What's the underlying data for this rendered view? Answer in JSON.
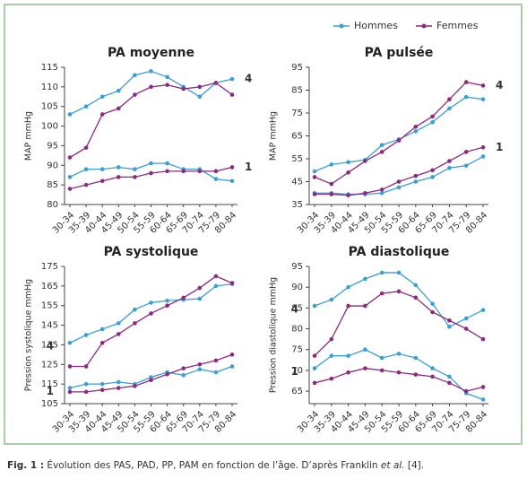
{
  "legend": [
    {
      "name": "Hommes",
      "color": "#3a9fd4"
    },
    {
      "name": "Femmes",
      "color": "#8c2a7e"
    }
  ],
  "caption": [
    "Fig. 1 :",
    " Évolution des PAS, PAD, PP, PAM en fonction de l’âge. D’après Franklin ",
    "et al.",
    " [4]."
  ],
  "chart_data": [
    {
      "type": "line",
      "title": "PA moyenne",
      "y_label": "MAP mmHg",
      "group_label_side": "right",
      "categories": [
        "30-34",
        "35-39",
        "40-44",
        "45-49",
        "50-54",
        "55-59",
        "60-64",
        "65-69",
        "70-74",
        "75-79",
        "80-84"
      ],
      "ylim": [
        80,
        115
      ],
      "yticks": [
        80,
        85,
        90,
        95,
        100,
        105,
        110,
        115
      ],
      "groups": [
        {
          "label": "4",
          "values": [
            [
              103,
              105,
              107.5,
              109,
              113,
              114,
              112.5,
              110,
              107.5,
              111,
              112
            ],
            [
              92,
              94.5,
              103,
              104.5,
              108,
              110,
              110.5,
              109.5,
              110,
              111,
              108
            ]
          ]
        },
        {
          "label": "1",
          "values": [
            [
              87,
              89,
              89,
              89.5,
              89,
              90.5,
              90.5,
              89,
              89,
              86.5,
              86
            ],
            [
              84,
              85,
              86,
              87,
              87,
              88,
              88.5,
              88.5,
              88.5,
              88.5,
              89.5
            ]
          ]
        }
      ]
    },
    {
      "type": "line",
      "title": "PA pulsée",
      "y_label": "MAP mmHg",
      "group_label_side": "right",
      "categories": [
        "30-34",
        "35-39",
        "40-44",
        "45-49",
        "50-54",
        "55-59",
        "60-64",
        "65-69",
        "70-74",
        "75-79",
        "80-84"
      ],
      "ylim": [
        35,
        95
      ],
      "yticks": [
        35,
        45,
        55,
        65,
        75,
        85,
        95
      ],
      "groups": [
        {
          "label": "4",
          "values": [
            [
              49.5,
              52.5,
              53.5,
              54.5,
              61,
              63.5,
              67,
              71,
              77,
              82,
              81
            ],
            [
              47,
              44,
              49,
              54,
              58,
              63,
              69,
              73.5,
              81,
              88.5,
              87
            ]
          ]
        },
        {
          "label": "1",
          "values": [
            [
              40,
              40,
              39.5,
              39.5,
              40,
              42.5,
              45,
              47,
              51,
              52,
              56
            ],
            [
              39.5,
              39.5,
              39,
              40,
              41.5,
              45,
              47.5,
              50,
              54,
              58,
              60
            ]
          ]
        }
      ]
    },
    {
      "type": "line",
      "title": "PA systolique",
      "y_label": "Pression systolique mmHg",
      "group_label_side": "left",
      "categories": [
        "30-34",
        "35-39",
        "40-44",
        "45-49",
        "50-54",
        "55-59",
        "60-64",
        "65-69",
        "70-74",
        "75-79",
        "80-84"
      ],
      "ylim": [
        105,
        175
      ],
      "yticks": [
        105,
        115,
        125,
        135,
        145,
        155,
        165,
        175
      ],
      "groups": [
        {
          "label": "4",
          "values": [
            [
              136,
              140,
              143,
              146,
              153,
              156.5,
              157.5,
              158,
              158.5,
              165,
              166
            ],
            [
              124,
              124,
              136,
              140.5,
              146,
              151,
              155,
              159,
              164,
              170,
              166.5
            ]
          ]
        },
        {
          "label": "1",
          "values": [
            [
              113,
              115,
              115,
              116,
              115,
              118.5,
              121,
              119.5,
              122.5,
              121,
              124
            ],
            [
              111,
              111,
              112,
              113,
              114,
              117,
              120,
              123,
              125,
              127,
              130
            ]
          ]
        }
      ]
    },
    {
      "type": "line",
      "title": "PA diastolique",
      "y_label": "Pression diastolique mmHg",
      "group_label_side": "left",
      "categories": [
        "30-34",
        "35-39",
        "40-44",
        "45-49",
        "50-54",
        "55-59",
        "60-64",
        "65-69",
        "70-74",
        "75-79",
        "80-84"
      ],
      "ylim": [
        62,
        95
      ],
      "yticks": [
        65,
        70,
        75,
        80,
        85,
        90,
        95
      ],
      "groups": [
        {
          "label": "4",
          "values": [
            [
              85.5,
              87,
              90,
              92,
              93.5,
              93.5,
              90.5,
              86,
              80.5,
              82.5,
              84.5
            ],
            [
              73.5,
              77.5,
              85.5,
              85.5,
              88.5,
              89,
              87.5,
              84,
              82,
              80,
              77.5
            ]
          ]
        },
        {
          "label": "1",
          "values": [
            [
              70.5,
              73.5,
              73.5,
              75,
              73,
              74,
              73,
              70.5,
              68.5,
              64.5,
              63
            ],
            [
              67,
              68,
              69.5,
              70.5,
              70,
              69.5,
              69,
              68.5,
              67,
              65,
              66
            ]
          ]
        }
      ]
    }
  ]
}
